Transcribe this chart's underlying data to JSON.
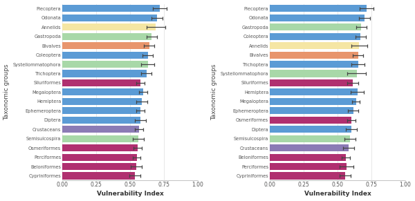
{
  "left_chart": {
    "categories": [
      "Plecoptera",
      "Odonata",
      "Annelids",
      "Gastropoda",
      "Bivalves",
      "Coleoptera",
      "Systellommatophora",
      "Trichoptera",
      "Siluriformes",
      "Megaloptera",
      "Hemiptera",
      "Ephemeroptera",
      "Diptera",
      "Crustaceans",
      "Semisulcospira",
      "Osmeriformes",
      "Perciformes",
      "Beloniformes",
      "Cypriniformes"
    ],
    "values": [
      0.72,
      0.7,
      0.69,
      0.66,
      0.64,
      0.63,
      0.63,
      0.62,
      0.575,
      0.595,
      0.585,
      0.575,
      0.575,
      0.565,
      0.56,
      0.555,
      0.548,
      0.545,
      0.535
    ],
    "errors": [
      0.05,
      0.04,
      0.07,
      0.04,
      0.04,
      0.04,
      0.05,
      0.04,
      0.03,
      0.03,
      0.04,
      0.03,
      0.04,
      0.03,
      0.04,
      0.03,
      0.03,
      0.04,
      0.04
    ],
    "colors": [
      "#5B9BD5",
      "#5B9BD5",
      "#F5E6A3",
      "#A8D8A8",
      "#E8956D",
      "#5B9BD5",
      "#A8D8A8",
      "#5B9BD5",
      "#B03070",
      "#5B9BD5",
      "#5B9BD5",
      "#5B9BD5",
      "#5B9BD5",
      "#8B7BB5",
      "#A8D8A8",
      "#B03070",
      "#B03070",
      "#B03070",
      "#B03070"
    ]
  },
  "right_chart": {
    "categories": [
      "Plecoptera",
      "Odonata",
      "Gastropoda",
      "Coleoptera",
      "Annelids",
      "Bivalves",
      "Trichoptera",
      "Systellommatophora",
      "Siluriformes",
      "Hemiptera",
      "Megaloptera",
      "Ephemeroptera",
      "Osmeriformes",
      "Diptera",
      "Semisulcospira",
      "Crustaceans",
      "Beloniformes",
      "Perciformes",
      "Cypriniformes"
    ],
    "values": [
      0.715,
      0.7,
      0.675,
      0.67,
      0.66,
      0.65,
      0.65,
      0.64,
      0.61,
      0.645,
      0.635,
      0.615,
      0.6,
      0.6,
      0.59,
      0.58,
      0.56,
      0.565,
      0.555
    ],
    "errors": [
      0.05,
      0.04,
      0.04,
      0.04,
      0.06,
      0.04,
      0.05,
      0.07,
      0.04,
      0.05,
      0.03,
      0.04,
      0.03,
      0.04,
      0.04,
      0.04,
      0.03,
      0.05,
      0.04
    ],
    "colors": [
      "#5B9BD5",
      "#5B9BD5",
      "#A8D8A8",
      "#5B9BD5",
      "#F5E6A3",
      "#E8956D",
      "#5B9BD5",
      "#A8D8A8",
      "#B03070",
      "#5B9BD5",
      "#5B9BD5",
      "#5B9BD5",
      "#B03070",
      "#5B9BD5",
      "#A8D8A8",
      "#8B7BB5",
      "#B03070",
      "#B03070",
      "#B03070"
    ]
  },
  "xlabel": "Vulnerability Index",
  "ylabel": "Taxonomic groups",
  "xlim": [
    0,
    1.0
  ],
  "xticks": [
    0.0,
    0.25,
    0.5,
    0.75,
    1.0
  ],
  "bar_height": 0.75,
  "grid_color": "#DDDDDD",
  "background_color": "#FFFFFF",
  "text_color": "#555555"
}
